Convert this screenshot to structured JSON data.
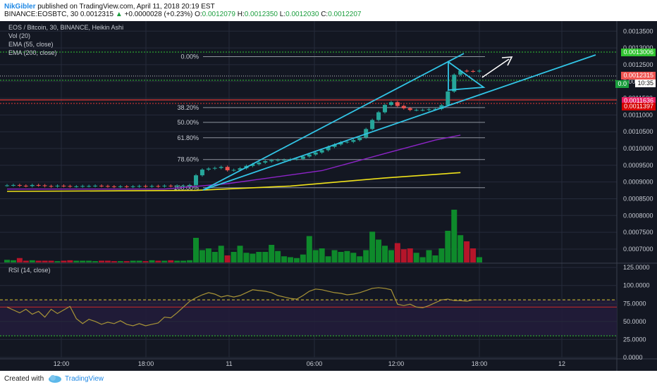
{
  "header": {
    "user": "NikGibler",
    "published_text": "published on TradingView.com, April 11, 2018 20:19 EST",
    "symbol": "BINANCE:EOSBTC, 30",
    "last": "0.0012315",
    "change": "+0.0000028 (+0.23%)",
    "open_label": "O:",
    "open": "0.0012079",
    "high_label": "H:",
    "high": "0.0012350",
    "low_label": "L:",
    "low": "0.0012030",
    "close_label": "C:",
    "close": "0.0012207",
    "up_arrow": "▲"
  },
  "legend": {
    "title": "EOS / Bitcoin, 30, BINANCE, Heikin Ashi",
    "vol": "Vol (20)",
    "ema55": "EMA (55, close)",
    "ema200": "EMA (200, close)",
    "rsi": "RSI (14, close)"
  },
  "price_tags": {
    "target": "0.0013006",
    "last": "0.0012315",
    "countdown": "10:35",
    "green_small": "0.0",
    "pink": "0.0011636",
    "red": "0.0011397"
  },
  "fib_levels": [
    {
      "label": "0.00%",
      "price": 0.001274
    },
    {
      "label": "38.20%",
      "price": 0.001122
    },
    {
      "label": "50.00%",
      "price": 0.001078
    },
    {
      "label": "61.80%",
      "price": 0.001032
    },
    {
      "label": "78.60%",
      "price": 0.000967
    },
    {
      "label": "100.00%",
      "price": 0.000883
    }
  ],
  "footer": {
    "created_with": "Created with",
    "brand": "TradingView"
  },
  "colors": {
    "bg": "#131722",
    "grid": "#262b3b",
    "up": "#26a69a",
    "up_vol": "#0e8a2b",
    "down": "#ef5350",
    "down_vol": "#b5152a",
    "ema55": "#8e24c9",
    "ema200": "#f0e21a",
    "channel": "#32c5e6",
    "fib": "#8f949e",
    "target_line": "#31c431",
    "red_line": "#e53935",
    "rsi": "#a89437"
  },
  "chart_data": [
    {
      "type": "candlestick",
      "title": "EOS / Bitcoin, 30, BINANCE, Heikin Ashi",
      "x_ticks": [
        "12:00",
        "18:00",
        "11",
        "06:00",
        "12:00",
        "18:00",
        "12"
      ],
      "y_ticks": [
        "0.0013500",
        "0.0013000",
        "0.0012500",
        "0.0012000",
        "0.0011500",
        "0.0011000",
        "0.0010500",
        "0.0010000",
        "0.0009500",
        "0.0009000",
        "0.0008500",
        "0.0008000",
        "0.0007500",
        "0.0007000"
      ],
      "ylim": [
        0.00066,
        0.00138
      ],
      "price_series": [
        0.00089,
        0.000891,
        0.000889,
        0.000888,
        0.000891,
        0.00089,
        0.000888,
        0.000887,
        0.000889,
        0.000888,
        0.000887,
        0.000887,
        0.000888,
        0.000888,
        0.000889,
        0.000888,
        0.000887,
        0.000886,
        0.000887,
        0.000886,
        0.000887,
        0.000888,
        0.000887,
        0.000888,
        0.000887,
        0.000889,
        0.000888,
        0.000889,
        0.000889,
        0.000891,
        0.00092,
        0.000937,
        0.00094,
        0.000942,
        0.000945,
        0.000935,
        0.000936,
        0.000941,
        0.000948,
        0.000953,
        0.000958,
        0.000962,
        0.000965,
        0.000966,
        0.000966,
        0.000968,
        0.000969,
        0.000976,
        0.000982,
        0.000988,
        0.000995,
        0.001005,
        0.001012,
        0.001019,
        0.00102,
        0.001025,
        0.001033,
        0.001058,
        0.001085,
        0.001108,
        0.00113,
        0.001138,
        0.001127,
        0.00112,
        0.001115,
        0.001115,
        0.001115,
        0.001117,
        0.001118,
        0.001129,
        0.00117,
        0.00122,
        0.001232,
        0.001231,
        0.00123,
        0.001232
      ],
      "ema55": [
        [
          0,
          0.000879
        ],
        [
          25,
          0.000879
        ],
        [
          35,
          0.000895
        ],
        [
          50,
          0.000934
        ],
        [
          60,
          0.000985
        ],
        [
          68,
          0.001025
        ],
        [
          72,
          0.00104
        ]
      ],
      "ema200": [
        [
          0,
          0.000872
        ],
        [
          30,
          0.000875
        ],
        [
          45,
          0.000888
        ],
        [
          60,
          0.000912
        ],
        [
          72,
          0.000928
        ]
      ],
      "volume_axis_note": "volume bars share the price axis scale in the lower band",
      "volume": [
        0.3,
        0.25,
        0.5,
        0.2,
        0.25,
        0.2,
        0.2,
        0.2,
        0.15,
        0.2,
        0.25,
        0.2,
        0.2,
        0.2,
        0.15,
        0.2,
        0.2,
        0.15,
        0.15,
        0.15,
        0.2,
        0.2,
        0.15,
        0.25,
        0.2,
        0.2,
        0.25,
        0.2,
        0.2,
        0.25,
        2.8,
        1.4,
        1.6,
        1.2,
        1.9,
        0.8,
        1.2,
        1.9,
        1.1,
        1.0,
        1.2,
        1.2,
        2.0,
        1.3,
        0.7,
        0.6,
        0.5,
        0.9,
        3.0,
        1.4,
        1.6,
        0.7,
        1.4,
        1.2,
        1.3,
        1.1,
        0.7,
        1.4,
        3.5,
        2.6,
        1.9,
        1.4,
        2.2,
        1.5,
        1.6,
        1.1,
        0.6,
        1.4,
        0.8,
        1.6,
        3.6,
        6.0,
        3.1,
        2.4,
        1.6,
        0.6
      ]
    },
    {
      "type": "line",
      "title": "RSI (14, close)",
      "y_ticks": [
        "125.0000",
        "100.0000",
        "75.0000",
        "50.0000",
        "25.0000",
        "0.0000"
      ],
      "ylim": [
        0,
        130
      ],
      "overbought": 80,
      "oversold": 30,
      "values": [
        70,
        66,
        62,
        67,
        60,
        64,
        56,
        67,
        61,
        66,
        71,
        54,
        47,
        53,
        50,
        46,
        49,
        47,
        51,
        46,
        44,
        47,
        44,
        46,
        48,
        56,
        55,
        62,
        70,
        78,
        83,
        87,
        90,
        88,
        84,
        86,
        84,
        86,
        90,
        94,
        93,
        92,
        90,
        86,
        84,
        82,
        81,
        86,
        92,
        95,
        94,
        92,
        90,
        89,
        87,
        88,
        90,
        93,
        96,
        97,
        96,
        94,
        74,
        72,
        74,
        70,
        69,
        72,
        76,
        80,
        81,
        79,
        79,
        78,
        80,
        80
      ]
    }
  ]
}
